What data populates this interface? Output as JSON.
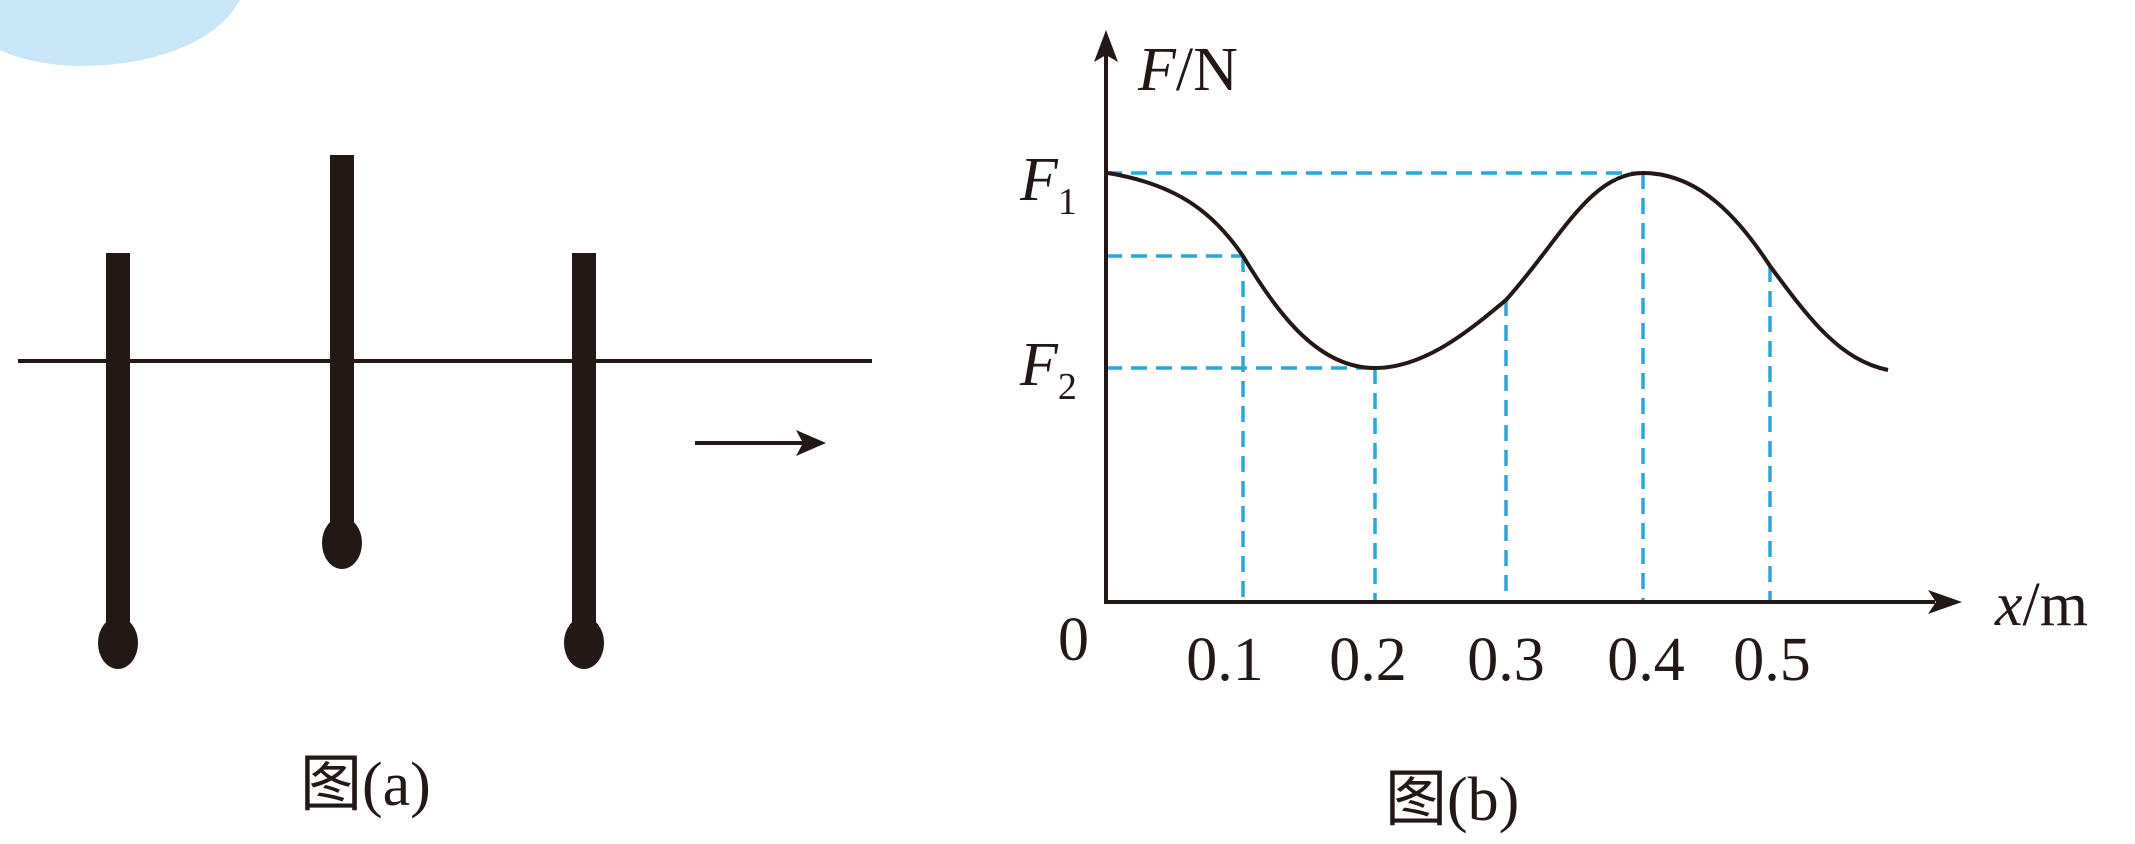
{
  "figure_a": {
    "caption": "图(a)"
  },
  "figure_b": {
    "caption": "图(b)",
    "y_axis_label": "F",
    "y_axis_unit": "/N",
    "x_axis_label": "x",
    "x_axis_unit": "/m",
    "origin_label": "0",
    "f1_label": {
      "main": "F",
      "sub": "1"
    },
    "f2_label": {
      "main": "F",
      "sub": "2"
    }
  },
  "chart_data": {
    "type": "line",
    "x_ticks": [
      "0.1",
      "0.2",
      "0.3",
      "0.4",
      "0.5"
    ],
    "x_tick_values": [
      0.1,
      0.2,
      0.3,
      0.4,
      0.5
    ],
    "xlabel": "x/m",
    "ylabel": "F/N",
    "y_levels": [
      "F1",
      "F2"
    ],
    "curve_points": [
      {
        "x": 0.0,
        "y": "F1"
      },
      {
        "x": 0.2,
        "y": "F2"
      },
      {
        "x": 0.4,
        "y": "F1"
      }
    ],
    "colors": {
      "curve": "#231815",
      "guide_lines": "#2aa7d8",
      "axes": "#231815"
    }
  }
}
